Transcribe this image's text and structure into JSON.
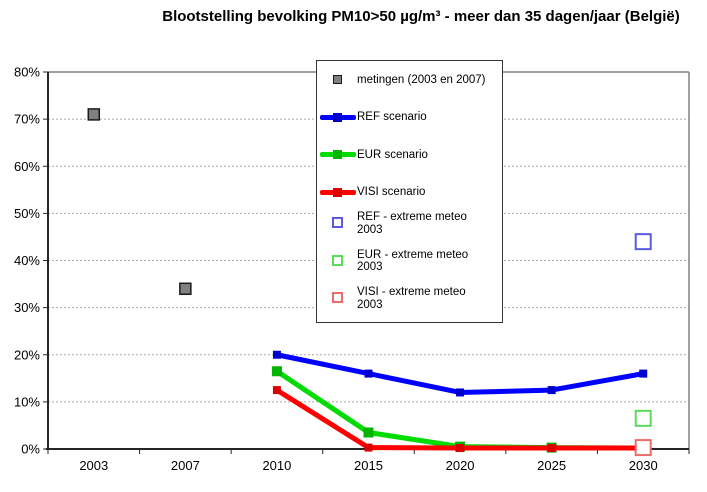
{
  "title": "Blootstelling bevolking PM10>50 µg/m³ - meer dan 35 dagen/jaar (België)",
  "chart_data": {
    "type": "line",
    "title": "Blootstelling bevolking PM10>50 µg/m³ - meer dan 35 dagen/jaar (België)",
    "categories": [
      "2003",
      "2007",
      "2010",
      "2015",
      "2020",
      "2025",
      "2030"
    ],
    "xlabel": "",
    "ylabel": "",
    "y_axis": {
      "min": 0,
      "max": 80,
      "step": 10,
      "tick_labels": [
        "0%",
        "10%",
        "20%",
        "30%",
        "40%",
        "50%",
        "60%",
        "70%",
        "80%"
      ]
    },
    "grid": "horizontal-dashed",
    "legend_position": "top-center-overlay",
    "colors": {
      "grid": "#a8a8a8",
      "axis": "#262626",
      "plot_border": "#808080"
    },
    "series": [
      {
        "id": "metingen",
        "name": "metingen (2003 en 2007)",
        "kind": "scatter",
        "marker": "filled-square",
        "color": "#808080",
        "border_color": "#1a1a1a",
        "x": [
          "2003",
          "2007"
        ],
        "values": [
          71,
          34
        ]
      },
      {
        "id": "ref",
        "name": "REF scenario",
        "kind": "line",
        "marker": "filled-square",
        "color": "#0000ff",
        "marker_color": "#0000cd",
        "x": [
          "2010",
          "2015",
          "2020",
          "2025",
          "2030"
        ],
        "values": [
          20,
          16,
          12,
          12.5,
          16
        ]
      },
      {
        "id": "eur",
        "name": "EUR scenario",
        "kind": "line",
        "marker": "filled-square",
        "color": "#00db00",
        "marker_color": "#00b400",
        "x": [
          "2010",
          "2015",
          "2020",
          "2025",
          "2030"
        ],
        "values": [
          16.5,
          3.5,
          0.5,
          0.3,
          0.2
        ]
      },
      {
        "id": "visi",
        "name": "VISI scenario",
        "kind": "line",
        "marker": "filled-square",
        "color": "#ff0000",
        "marker_color": "#dc0000",
        "x": [
          "2010",
          "2015",
          "2020",
          "2025",
          "2030"
        ],
        "values": [
          12.5,
          0.3,
          0.2,
          0.2,
          0.2
        ]
      },
      {
        "id": "ref-extreme",
        "name": "REF - extreme meteo 2003",
        "kind": "scatter",
        "marker": "open-square",
        "color": "#5a5ae6",
        "x": [
          "2030"
        ],
        "values": [
          44
        ]
      },
      {
        "id": "eur-extreme",
        "name": "EUR - extreme meteo 2003",
        "kind": "scatter",
        "marker": "open-square",
        "color": "#5adb5a",
        "x": [
          "2030"
        ],
        "values": [
          6.5
        ]
      },
      {
        "id": "visi-extreme",
        "name": "VISI - extreme meteo 2003",
        "kind": "scatter",
        "marker": "open-square",
        "color": "#f06a6a",
        "x": [
          "2030"
        ],
        "values": [
          0.3
        ]
      }
    ],
    "legend_items": [
      {
        "series": "metingen",
        "lines": [
          "metingen (2003 en 2007)"
        ]
      },
      {
        "series": "ref",
        "lines": [
          "REF scenario"
        ]
      },
      {
        "series": "eur",
        "lines": [
          "EUR scenario"
        ]
      },
      {
        "series": "visi",
        "lines": [
          "VISI scenario"
        ]
      },
      {
        "series": "ref-extreme",
        "lines": [
          "REF - extreme meteo",
          "2003"
        ]
      },
      {
        "series": "eur-extreme",
        "lines": [
          "EUR - extreme meteo",
          "2003"
        ]
      },
      {
        "series": "visi-extreme",
        "lines": [
          "VISI - extreme meteo",
          "2003"
        ]
      }
    ]
  }
}
